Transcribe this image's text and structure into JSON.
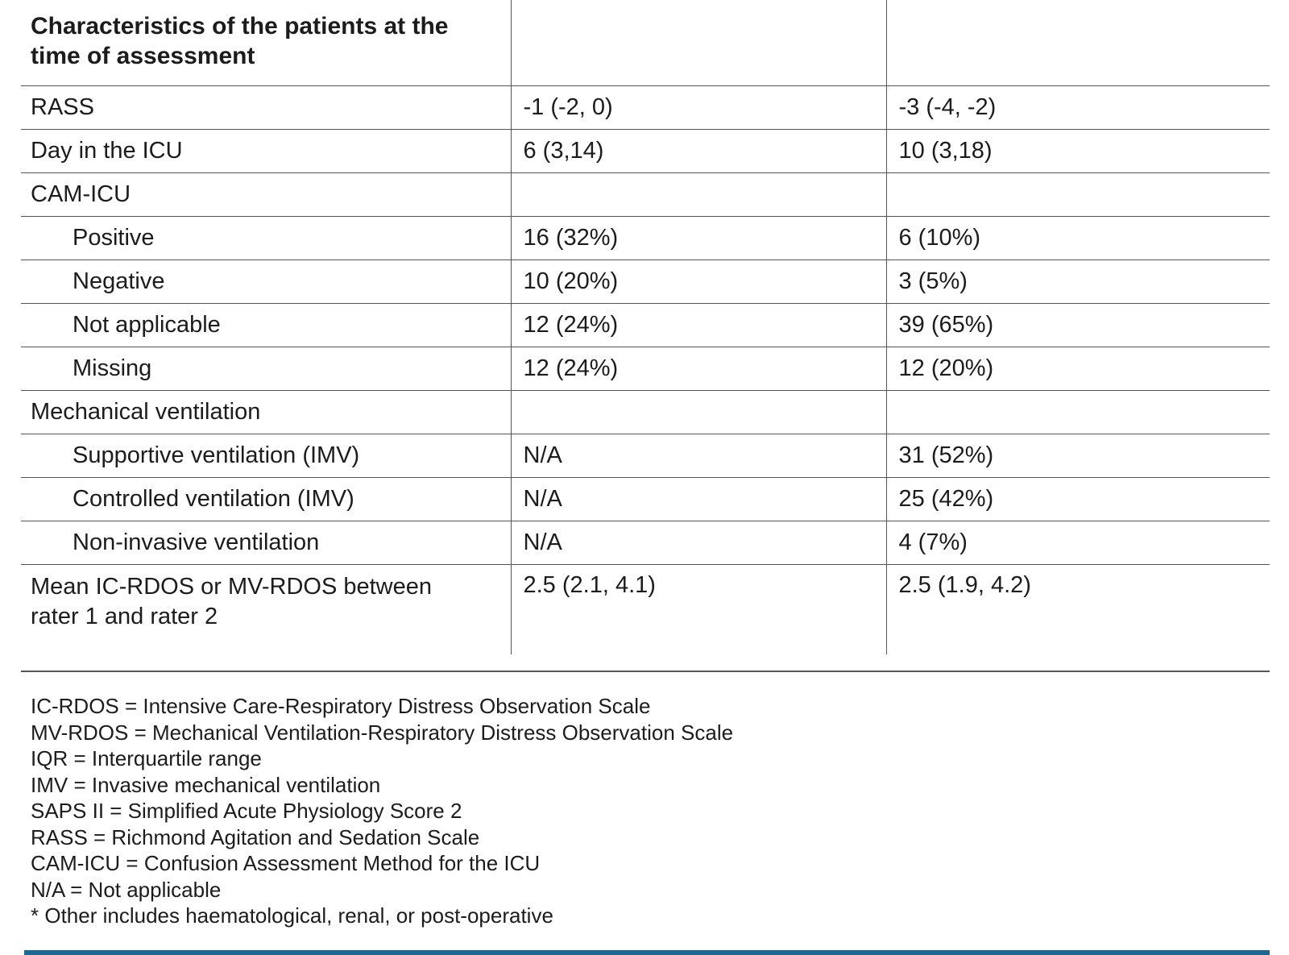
{
  "table": {
    "header": {
      "title": "Characteristics of the patients at the\ntime of assessment",
      "col2": "",
      "col3": ""
    },
    "rows": [
      {
        "label": "RASS",
        "col2": "-1 (-2, 0)",
        "col3": "-3 (-4, -2)"
      },
      {
        "label": "Day in the ICU",
        "col2": "6 (3,14)",
        "col3": "10 (3,18)"
      },
      {
        "label": "CAM-ICU",
        "col2": "",
        "col3": ""
      },
      {
        "label": "Positive",
        "col2": "16 (32%)",
        "col3": "6 (10%)"
      },
      {
        "label": "Negative",
        "col2": "10 (20%)",
        "col3": "3 (5%)"
      },
      {
        "label": "Not applicable",
        "col2": "12 (24%)",
        "col3": "39 (65%)"
      },
      {
        "label": "Missing",
        "col2": "12 (24%)",
        "col3": "12 (20%)"
      },
      {
        "label": "Mechanical ventilation",
        "col2": "",
        "col3": ""
      },
      {
        "label": "Supportive ventilation (IMV)",
        "col2": "N/A",
        "col3": "31 (52%)"
      },
      {
        "label": "Controlled ventilation (IMV)",
        "col2": "N/A",
        "col3": "25 (42%)"
      },
      {
        "label": "Non-invasive ventilation",
        "col2": "N/A",
        "col3": "4 (7%)"
      },
      {
        "label": "Mean IC-RDOS or MV-RDOS between\nrater 1 and rater 2",
        "col2": "2.5 (2.1, 4.1)",
        "col3": "2.5 (1.9, 4.2)"
      }
    ]
  },
  "footnotes": [
    "IC-RDOS = Intensive Care-Respiratory Distress Observation Scale",
    "MV-RDOS = Mechanical Ventilation-Respiratory Distress Observation Scale",
    "IQR = Interquartile range",
    "IMV = Invasive mechanical ventilation",
    "SAPS II = Simplified Acute Physiology Score 2",
    "RASS = Richmond Agitation and Sedation Scale",
    "CAM-ICU = Confusion Assessment Method for the ICU",
    "N/A = Not applicable",
    "* Other includes haematological, renal, or post-operative"
  ],
  "colors": {
    "text": "#1c1c1c",
    "grid_line": "#555555",
    "accent_line": "#1d6890"
  }
}
